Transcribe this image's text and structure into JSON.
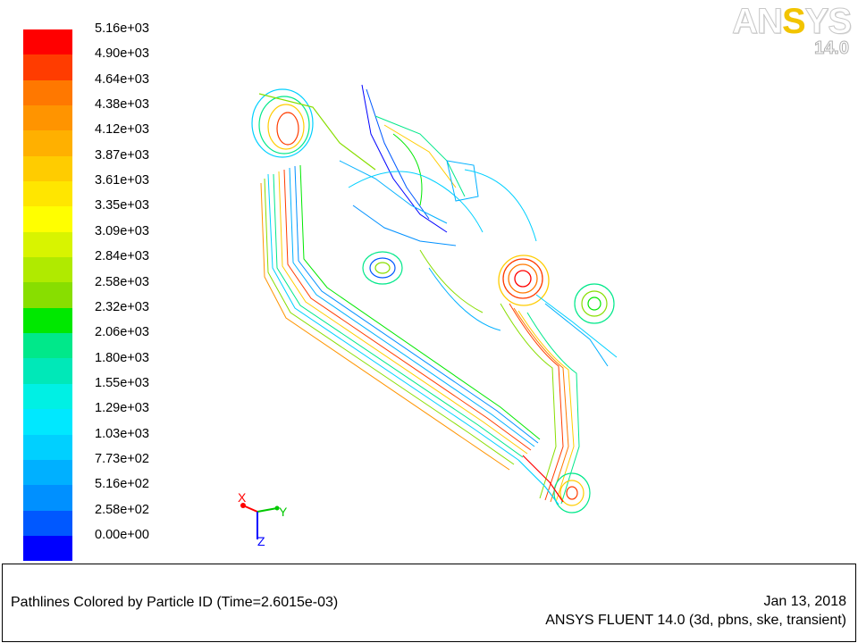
{
  "colorbar": {
    "levels": [
      "5.16e+03",
      "4.90e+03",
      "4.64e+03",
      "4.38e+03",
      "4.12e+03",
      "3.87e+03",
      "3.61e+03",
      "3.35e+03",
      "3.09e+03",
      "2.84e+03",
      "2.58e+03",
      "2.32e+03",
      "2.06e+03",
      "1.80e+03",
      "1.55e+03",
      "1.29e+03",
      "1.03e+03",
      "7.73e+02",
      "5.16e+02",
      "2.58e+02",
      "0.00e+00"
    ],
    "colors": [
      "#ff0000",
      "#ff3c00",
      "#ff7800",
      "#ff9400",
      "#ffb000",
      "#ffcc00",
      "#ffe600",
      "#ffff00",
      "#d8f400",
      "#b0ea00",
      "#88de00",
      "#00e800",
      "#00e88a",
      "#00e8b8",
      "#00f0e4",
      "#00e8ff",
      "#00d0ff",
      "#00b0ff",
      "#0090ff",
      "#0058ff",
      "#0000ff"
    ]
  },
  "logo": {
    "brand_prefix": "AN",
    "brand_accent": "S",
    "brand_suffix": "YS",
    "version": "14.0"
  },
  "axes": {
    "x": "X",
    "y": "Y",
    "z": "Z"
  },
  "footer": {
    "title": "Pathlines Colored by Particle ID  (Time=2.6015e-03)",
    "date": "Jan 13, 2018",
    "product": "ANSYS FLUENT 14.0 (3d, pbns, ske, transient)"
  }
}
